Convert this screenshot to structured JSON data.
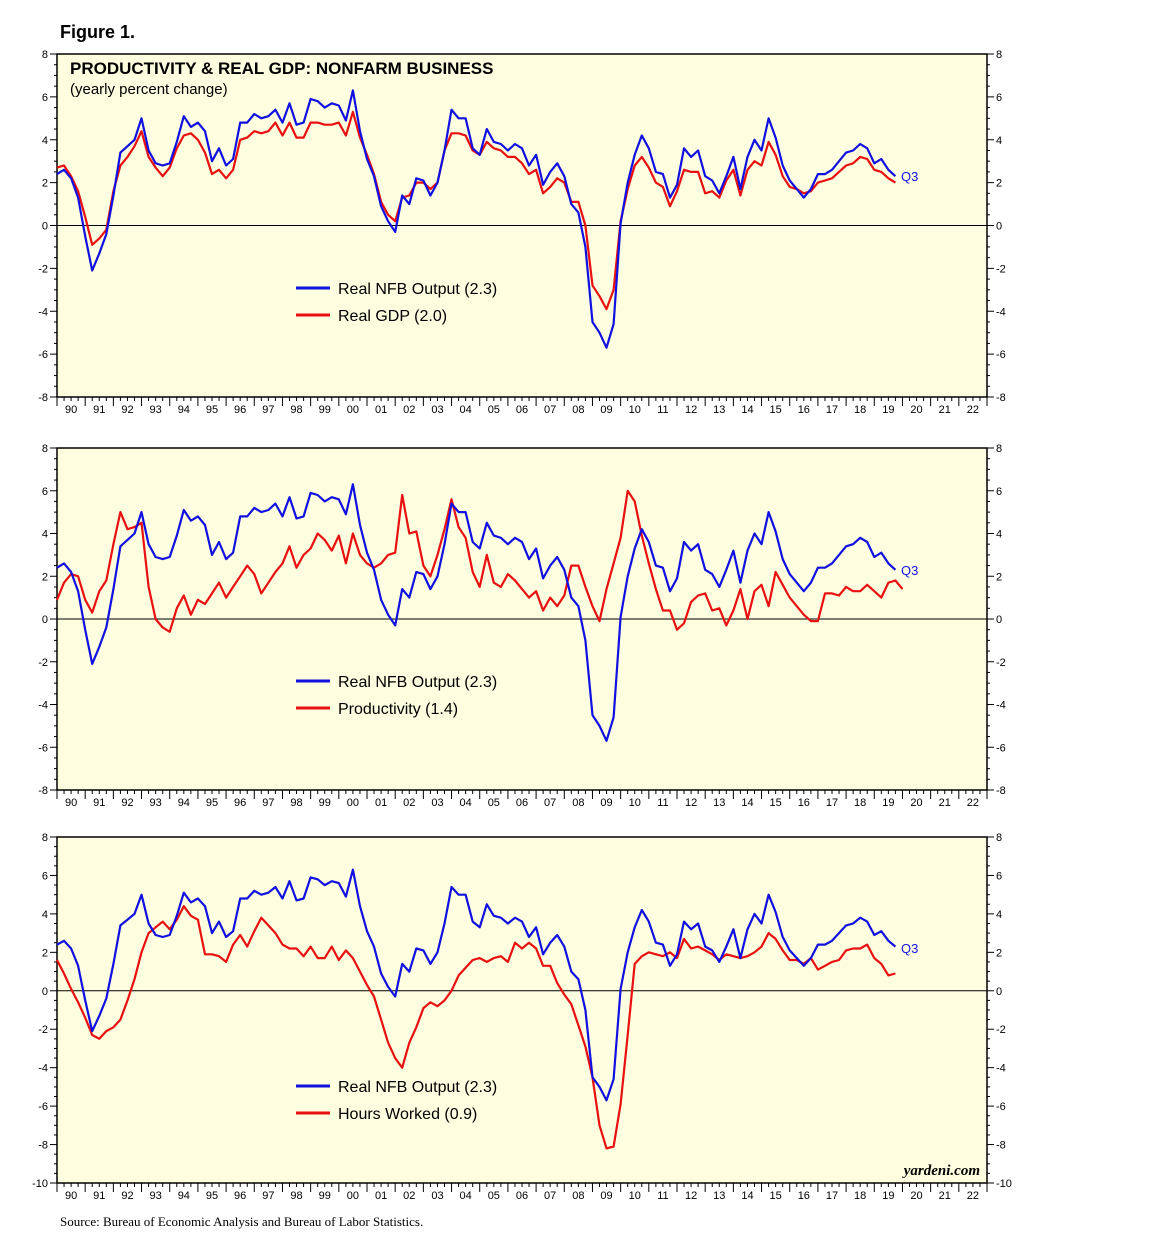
{
  "figure_title": "Figure 1.",
  "source": "Source: Bureau of Economic Analysis and Bureau of Labor Statistics.",
  "brand": "yardeni.com",
  "colors": {
    "output": "#1010e0",
    "second": "#e81010",
    "plot_bg": "#fdfddf"
  },
  "chart_data": [
    {
      "type": "line",
      "title": "PRODUCTIVITY & REAL GDP: NONFARM BUSINESS",
      "subtitle": "(yearly percent change)",
      "ylim": [
        -8,
        8
      ],
      "yticks": [
        8,
        6,
        4,
        2,
        0,
        -2,
        -4,
        -6,
        -8
      ],
      "xlim": [
        1990,
        2023
      ],
      "xtick_labels": [
        "90",
        "91",
        "92",
        "93",
        "94",
        "95",
        "96",
        "97",
        "98",
        "99",
        "00",
        "01",
        "02",
        "03",
        "04",
        "05",
        "06",
        "07",
        "08",
        "09",
        "10",
        "11",
        "12",
        "13",
        "14",
        "15",
        "16",
        "17",
        "18",
        "19",
        "20",
        "21",
        "22"
      ],
      "end_label": "Q3",
      "series": [
        {
          "name": "Real NFB Output (2.3)",
          "x_start": 1990.0,
          "x_step": 0.25,
          "values": [
            2.4,
            2.6,
            2.2,
            1.3,
            -0.5,
            -2.1,
            -1.3,
            -0.4,
            1.4,
            3.4,
            3.7,
            4.0,
            5.0,
            3.5,
            2.9,
            2.8,
            2.9,
            3.9,
            5.1,
            4.6,
            4.8,
            4.4,
            3.0,
            3.6,
            2.8,
            3.1,
            4.8,
            4.8,
            5.2,
            5.0,
            5.1,
            5.4,
            4.8,
            5.7,
            4.7,
            4.8,
            5.9,
            5.8,
            5.5,
            5.7,
            5.6,
            4.9,
            6.3,
            4.4,
            3.1,
            2.3,
            0.9,
            0.2,
            -0.3,
            1.4,
            1.0,
            2.2,
            2.1,
            1.4,
            2.0,
            3.5,
            5.4,
            5.0,
            5.0,
            3.6,
            3.3,
            4.5,
            3.9,
            3.8,
            3.5,
            3.8,
            3.6,
            2.8,
            3.3,
            1.9,
            2.5,
            2.9,
            2.3,
            1.0,
            0.6,
            -1.0,
            -4.5,
            -5.0,
            -5.7,
            -4.6,
            0.1,
            2.0,
            3.3,
            4.2,
            3.6,
            2.5,
            2.4,
            1.3,
            1.9,
            3.6,
            3.2,
            3.5,
            2.3,
            2.1,
            1.5,
            2.3,
            3.2,
            1.7,
            3.2,
            4.0,
            3.5,
            5.0,
            4.1,
            2.8,
            2.1,
            1.7,
            1.3,
            1.7,
            2.4,
            2.4,
            2.6,
            3.0,
            3.4,
            3.5,
            3.8,
            3.6,
            2.9,
            3.1,
            2.6,
            2.3
          ]
        },
        {
          "name": "Real GDP (2.0)",
          "x_start": 1990.0,
          "x_step": 0.25,
          "values": [
            2.7,
            2.8,
            2.3,
            1.6,
            0.4,
            -0.9,
            -0.6,
            -0.2,
            1.6,
            2.8,
            3.2,
            3.7,
            4.4,
            3.2,
            2.7,
            2.3,
            2.7,
            3.6,
            4.2,
            4.3,
            4.0,
            3.4,
            2.4,
            2.6,
            2.2,
            2.6,
            4.0,
            4.1,
            4.4,
            4.3,
            4.4,
            4.8,
            4.2,
            4.8,
            4.1,
            4.1,
            4.8,
            4.8,
            4.7,
            4.7,
            4.8,
            4.2,
            5.3,
            4.1,
            3.3,
            2.4,
            1.1,
            0.5,
            0.2,
            1.3,
            1.4,
            2.0,
            2.0,
            1.7,
            2.0,
            3.5,
            4.3,
            4.3,
            4.2,
            3.5,
            3.3,
            3.9,
            3.6,
            3.5,
            3.2,
            3.2,
            2.9,
            2.4,
            2.6,
            1.5,
            1.8,
            2.2,
            2.0,
            1.1,
            1.1,
            0.0,
            -2.8,
            -3.3,
            -3.9,
            -3.0,
            0.2,
            1.7,
            2.8,
            3.2,
            2.7,
            2.0,
            1.8,
            0.9,
            1.6,
            2.6,
            2.5,
            2.5,
            1.5,
            1.6,
            1.3,
            2.1,
            2.6,
            1.4,
            2.6,
            3.0,
            2.8,
            3.9,
            3.3,
            2.3,
            1.8,
            1.7,
            1.5,
            1.6,
            2.0,
            2.1,
            2.2,
            2.5,
            2.8,
            2.9,
            3.2,
            3.1,
            2.6,
            2.5,
            2.2,
            2.0
          ]
        }
      ]
    },
    {
      "type": "line",
      "ylim": [
        -8,
        8
      ],
      "yticks": [
        8,
        6,
        4,
        2,
        0,
        -2,
        -4,
        -6,
        -8
      ],
      "xlim": [
        1990,
        2023
      ],
      "xtick_labels": [
        "90",
        "91",
        "92",
        "93",
        "94",
        "95",
        "96",
        "97",
        "98",
        "99",
        "00",
        "01",
        "02",
        "03",
        "04",
        "05",
        "06",
        "07",
        "08",
        "09",
        "10",
        "11",
        "12",
        "13",
        "14",
        "15",
        "16",
        "17",
        "18",
        "19",
        "20",
        "21",
        "22"
      ],
      "end_label": "Q3",
      "series": [
        {
          "name": "Real NFB Output (2.3)",
          "x_start": 1990.0,
          "x_step": 0.25,
          "values": [
            2.4,
            2.6,
            2.2,
            1.3,
            -0.5,
            -2.1,
            -1.3,
            -0.4,
            1.4,
            3.4,
            3.7,
            4.0,
            5.0,
            3.5,
            2.9,
            2.8,
            2.9,
            3.9,
            5.1,
            4.6,
            4.8,
            4.4,
            3.0,
            3.6,
            2.8,
            3.1,
            4.8,
            4.8,
            5.2,
            5.0,
            5.1,
            5.4,
            4.8,
            5.7,
            4.7,
            4.8,
            5.9,
            5.8,
            5.5,
            5.7,
            5.6,
            4.9,
            6.3,
            4.4,
            3.1,
            2.3,
            0.9,
            0.2,
            -0.3,
            1.4,
            1.0,
            2.2,
            2.1,
            1.4,
            2.0,
            3.5,
            5.4,
            5.0,
            5.0,
            3.6,
            3.3,
            4.5,
            3.9,
            3.8,
            3.5,
            3.8,
            3.6,
            2.8,
            3.3,
            1.9,
            2.5,
            2.9,
            2.3,
            1.0,
            0.6,
            -1.0,
            -4.5,
            -5.0,
            -5.7,
            -4.6,
            0.1,
            2.0,
            3.3,
            4.2,
            3.6,
            2.5,
            2.4,
            1.3,
            1.9,
            3.6,
            3.2,
            3.5,
            2.3,
            2.1,
            1.5,
            2.3,
            3.2,
            1.7,
            3.2,
            4.0,
            3.5,
            5.0,
            4.1,
            2.8,
            2.1,
            1.7,
            1.3,
            1.7,
            2.4,
            2.4,
            2.6,
            3.0,
            3.4,
            3.5,
            3.8,
            3.6,
            2.9,
            3.1,
            2.6,
            2.3
          ]
        },
        {
          "name": "Productivity (1.4)",
          "x_start": 1990.0,
          "x_step": 0.25,
          "values": [
            0.9,
            1.7,
            2.1,
            2.0,
            0.9,
            0.3,
            1.3,
            1.8,
            3.5,
            5.0,
            4.2,
            4.3,
            4.5,
            1.5,
            0.0,
            -0.4,
            -0.6,
            0.5,
            1.1,
            0.2,
            0.9,
            0.7,
            1.2,
            1.7,
            1.0,
            1.5,
            2.0,
            2.5,
            2.1,
            1.2,
            1.7,
            2.2,
            2.6,
            3.4,
            2.4,
            3.0,
            3.3,
            4.0,
            3.7,
            3.2,
            3.9,
            2.6,
            4.0,
            3.0,
            2.6,
            2.4,
            2.6,
            3.0,
            3.1,
            5.8,
            4.0,
            4.1,
            2.5,
            2.0,
            3.0,
            4.2,
            5.6,
            4.3,
            3.8,
            2.2,
            1.5,
            3.0,
            1.7,
            1.5,
            2.1,
            1.8,
            1.4,
            1.0,
            1.3,
            0.4,
            1.0,
            0.6,
            1.1,
            2.5,
            2.5,
            1.5,
            0.6,
            -0.1,
            1.4,
            2.6,
            3.8,
            6.0,
            5.5,
            3.9,
            2.6,
            1.4,
            0.4,
            0.4,
            -0.5,
            -0.2,
            0.8,
            1.1,
            1.2,
            0.4,
            0.5,
            -0.3,
            0.4,
            1.4,
            0.0,
            1.3,
            1.6,
            0.6,
            2.2,
            1.6,
            1.0,
            0.6,
            0.2,
            -0.1,
            -0.1,
            1.2,
            1.2,
            1.1,
            1.5,
            1.3,
            1.3,
            1.6,
            1.3,
            1.0,
            1.7,
            1.8,
            1.4
          ]
        }
      ]
    },
    {
      "type": "line",
      "ylim": [
        -10,
        8
      ],
      "yticks": [
        8,
        6,
        4,
        2,
        0,
        -2,
        -4,
        -6,
        -8,
        -10
      ],
      "xlim": [
        1990,
        2023
      ],
      "xtick_labels": [
        "90",
        "91",
        "92",
        "93",
        "94",
        "95",
        "96",
        "97",
        "98",
        "99",
        "00",
        "01",
        "02",
        "03",
        "04",
        "05",
        "06",
        "07",
        "08",
        "09",
        "10",
        "11",
        "12",
        "13",
        "14",
        "15",
        "16",
        "17",
        "18",
        "19",
        "20",
        "21",
        "22"
      ],
      "end_label": "Q3",
      "series": [
        {
          "name": "Real NFB Output (2.3)",
          "x_start": 1990.0,
          "x_step": 0.25,
          "values": [
            2.4,
            2.6,
            2.2,
            1.3,
            -0.5,
            -2.1,
            -1.3,
            -0.4,
            1.4,
            3.4,
            3.7,
            4.0,
            5.0,
            3.5,
            2.9,
            2.8,
            2.9,
            3.9,
            5.1,
            4.6,
            4.8,
            4.4,
            3.0,
            3.6,
            2.8,
            3.1,
            4.8,
            4.8,
            5.2,
            5.0,
            5.1,
            5.4,
            4.8,
            5.7,
            4.7,
            4.8,
            5.9,
            5.8,
            5.5,
            5.7,
            5.6,
            4.9,
            6.3,
            4.4,
            3.1,
            2.3,
            0.9,
            0.2,
            -0.3,
            1.4,
            1.0,
            2.2,
            2.1,
            1.4,
            2.0,
            3.5,
            5.4,
            5.0,
            5.0,
            3.6,
            3.3,
            4.5,
            3.9,
            3.8,
            3.5,
            3.8,
            3.6,
            2.8,
            3.3,
            1.9,
            2.5,
            2.9,
            2.3,
            1.0,
            0.6,
            -1.0,
            -4.5,
            -5.0,
            -5.7,
            -4.6,
            0.1,
            2.0,
            3.3,
            4.2,
            3.6,
            2.5,
            2.4,
            1.3,
            1.9,
            3.6,
            3.2,
            3.5,
            2.3,
            2.1,
            1.5,
            2.3,
            3.2,
            1.7,
            3.2,
            4.0,
            3.5,
            5.0,
            4.1,
            2.8,
            2.1,
            1.7,
            1.3,
            1.7,
            2.4,
            2.4,
            2.6,
            3.0,
            3.4,
            3.5,
            3.8,
            3.6,
            2.9,
            3.1,
            2.6,
            2.3
          ]
        },
        {
          "name": "Hours Worked (0.9)",
          "x_start": 1990.0,
          "x_step": 0.25,
          "values": [
            1.6,
            0.9,
            0.1,
            -0.6,
            -1.4,
            -2.3,
            -2.5,
            -2.1,
            -1.9,
            -1.5,
            -0.5,
            0.6,
            2.0,
            3.0,
            3.3,
            3.6,
            3.2,
            3.7,
            4.4,
            3.9,
            3.7,
            1.9,
            1.9,
            1.8,
            1.5,
            2.4,
            2.9,
            2.3,
            3.1,
            3.8,
            3.4,
            3.0,
            2.4,
            2.2,
            2.2,
            1.8,
            2.3,
            1.7,
            1.7,
            2.3,
            1.6,
            2.1,
            1.7,
            1.0,
            0.3,
            -0.3,
            -1.5,
            -2.7,
            -3.5,
            -4.0,
            -2.7,
            -1.9,
            -0.9,
            -0.6,
            -0.8,
            -0.5,
            0.0,
            0.8,
            1.2,
            1.6,
            1.7,
            1.5,
            1.7,
            1.8,
            1.5,
            2.5,
            2.2,
            2.5,
            2.2,
            1.3,
            1.3,
            0.4,
            -0.2,
            -0.7,
            -1.8,
            -2.9,
            -4.5,
            -7.0,
            -8.2,
            -8.1,
            -5.9,
            -2.3,
            1.4,
            1.8,
            2.0,
            1.9,
            1.8,
            2.0,
            1.7,
            2.7,
            2.2,
            2.3,
            2.1,
            1.9,
            1.6,
            1.9,
            1.8,
            1.7,
            1.8,
            2.0,
            2.3,
            3.0,
            2.7,
            2.1,
            1.6,
            1.6,
            1.4,
            1.7,
            1.1,
            1.3,
            1.5,
            1.6,
            2.1,
            2.2,
            2.2,
            2.4,
            1.7,
            1.4,
            0.8,
            0.9
          ]
        }
      ]
    }
  ]
}
